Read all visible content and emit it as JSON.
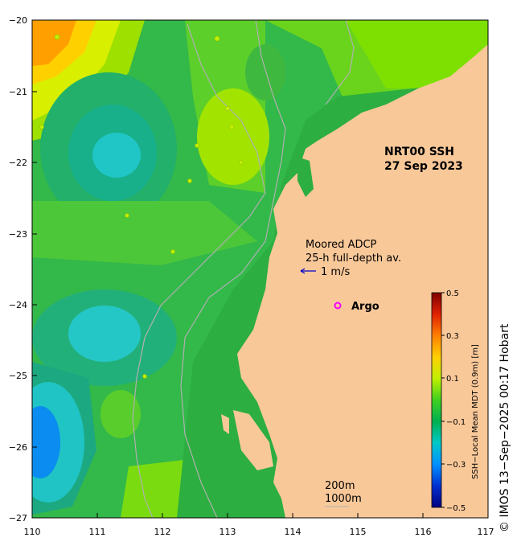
{
  "title": "NRT00 SSH",
  "date": "27 Sep 2023",
  "moored_label": "Moored ADCP",
  "moored_sub": "25-h full-depth av.",
  "vector_scale": "1 m/s",
  "argo_label": "Argo",
  "depth_200": "200m",
  "depth_1000": "1000m",
  "colorbar_label": "SSH−Local Mean MDT (0.9m) [m]",
  "credit": "© IMOS 13−Sep−2025 00:17 Hobart",
  "colors": {
    "land": "#f9c899",
    "argo": "#ff00ff",
    "vector": "#0000cc",
    "contour_isobath": "#b0b0b0"
  },
  "chart_data": {
    "type": "heatmap",
    "x_ticks": [
      "110",
      "111",
      "112",
      "113",
      "114",
      "115",
      "116",
      "117"
    ],
    "y_ticks": [
      "−20",
      "−21",
      "−22",
      "−23",
      "−24",
      "−25",
      "−26",
      "−27"
    ],
    "xlim": [
      110,
      117
    ],
    "ylim": [
      -27,
      -20
    ],
    "colorbar": {
      "min": -0.5,
      "max": 0.5,
      "ticks": [
        "0.5",
        "0.3",
        "0.1",
        "−0.1",
        "−0.3",
        "−0.5"
      ]
    }
  }
}
